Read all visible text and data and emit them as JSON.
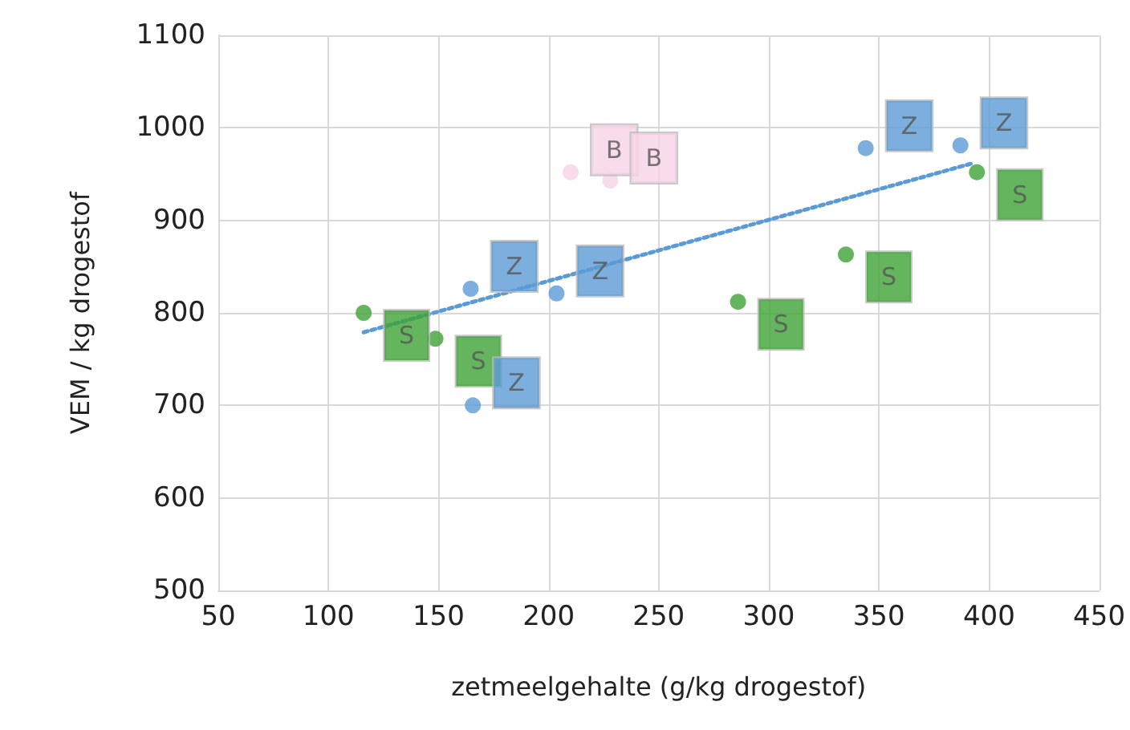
{
  "chart_data": {
    "type": "scatter",
    "xlabel": "zetmeelgehalte (g/kg drogestof)",
    "ylabel": "VEM / kg drogestof",
    "xlim": [
      50,
      450
    ],
    "xticks": [
      50,
      100,
      150,
      200,
      250,
      300,
      350,
      400,
      450
    ],
    "ylim": [
      500,
      1100
    ],
    "yticks": [
      500,
      600,
      700,
      800,
      900,
      1000,
      1100
    ],
    "grid": true,
    "marker": "circle",
    "series": [
      {
        "color": "#3da335",
        "x": [
          116,
          148.6,
          286,
          335,
          394.5
        ],
        "values": [
          800,
          772,
          812,
          863,
          952
        ],
        "value_labels": [
          "S",
          "S",
          "S",
          "S",
          "S"
        ]
      },
      {
        "color": "#5b9bd5",
        "x": [
          164.6,
          165.6,
          203.6,
          344,
          387
        ],
        "values": [
          826,
          700,
          821,
          978,
          981
        ],
        "value_labels": [
          "Z",
          "Z",
          "Z",
          "Z",
          "Z"
        ]
      },
      {
        "color": "#f8d3e6",
        "x": [
          210,
          228
        ],
        "values": [
          952,
          943
        ],
        "value_labels": [
          "B",
          "B"
        ]
      },
      {
        "type": "line",
        "color": "#5b9bd5",
        "x": [
          116,
          393
        ],
        "values": [
          779,
          962
        ],
        "line_style": "dotted",
        "marker": "none"
      }
    ]
  }
}
